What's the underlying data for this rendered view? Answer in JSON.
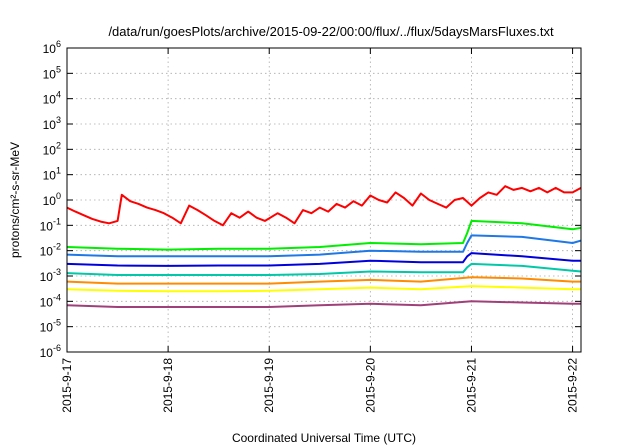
{
  "chart_data": {
    "type": "line",
    "title": "/data/run/goesPlots/archive/2015-09-22/00:00/flux/../flux/5daysMarsFluxes.txt",
    "xlabel": "Coordinated Universal Time (UTC)",
    "ylabel": "protons/cm²-s-sr-MeV",
    "y_scale": "log",
    "ylim": [
      1e-06,
      1000000.0
    ],
    "y_ticks": [
      {
        "value": 1e-06,
        "base": "10",
        "exp": "-6"
      },
      {
        "value": 1e-05,
        "base": "10",
        "exp": "-5"
      },
      {
        "value": 0.0001,
        "base": "10",
        "exp": "-4"
      },
      {
        "value": 0.001,
        "base": "10",
        "exp": "-3"
      },
      {
        "value": 0.01,
        "base": "10",
        "exp": "-2"
      },
      {
        "value": 0.1,
        "base": "10",
        "exp": "-1"
      },
      {
        "value": 1,
        "base": "10",
        "exp": "0"
      },
      {
        "value": 10,
        "base": "10",
        "exp": "1"
      },
      {
        "value": 100,
        "base": "10",
        "exp": "2"
      },
      {
        "value": 1000,
        "base": "10",
        "exp": "3"
      },
      {
        "value": 10000,
        "base": "10",
        "exp": "4"
      },
      {
        "value": 100000,
        "base": "10",
        "exp": "5"
      },
      {
        "value": 1000000,
        "base": "10",
        "exp": "6"
      }
    ],
    "xlim": [
      "2015-09-17",
      "2015-09-22 02:00"
    ],
    "x_ticks": [
      {
        "value": "2015-09-17",
        "label": "2015-9-17"
      },
      {
        "value": "2015-09-18",
        "label": "2015-9-18"
      },
      {
        "value": "2015-09-19",
        "label": "2015-9-19"
      },
      {
        "value": "2015-09-20",
        "label": "2015-9-20"
      },
      {
        "value": "2015-09-21",
        "label": "2015-9-21"
      },
      {
        "value": "2015-09-22",
        "label": "2015-9-22"
      }
    ],
    "grid": true,
    "legend": "none",
    "series": [
      {
        "color": "#ff0000",
        "x": [
          "2015-09-17 00:00",
          "2015-09-17 02:00",
          "2015-09-17 04:00",
          "2015-09-17 06:00",
          "2015-09-17 08:00",
          "2015-09-17 10:00",
          "2015-09-17 12:00",
          "2015-09-17 13:00",
          "2015-09-17 15:00",
          "2015-09-17 17:00",
          "2015-09-17 19:00",
          "2015-09-17 21:00",
          "2015-09-17 23:00",
          "2015-09-18 01:00",
          "2015-09-18 03:00",
          "2015-09-18 05:00",
          "2015-09-18 07:00",
          "2015-09-18 09:00",
          "2015-09-18 11:00",
          "2015-09-18 13:00",
          "2015-09-18 15:00",
          "2015-09-18 17:00",
          "2015-09-18 19:00",
          "2015-09-18 21:00",
          "2015-09-18 23:00",
          "2015-09-19 02:00",
          "2015-09-19 04:00",
          "2015-09-19 06:00",
          "2015-09-19 08:00",
          "2015-09-19 10:00",
          "2015-09-19 12:00",
          "2015-09-19 14:00",
          "2015-09-19 16:00",
          "2015-09-19 18:00",
          "2015-09-19 20:00",
          "2015-09-19 22:00",
          "2015-09-20 00:00",
          "2015-09-20 02:00",
          "2015-09-20 04:00",
          "2015-09-20 06:00",
          "2015-09-20 08:00",
          "2015-09-20 10:00",
          "2015-09-20 12:00",
          "2015-09-20 14:00",
          "2015-09-20 16:00",
          "2015-09-20 18:00",
          "2015-09-20 20:00",
          "2015-09-20 22:00",
          "2015-09-21 00:00",
          "2015-09-21 02:00",
          "2015-09-21 04:00",
          "2015-09-21 06:00",
          "2015-09-21 08:00",
          "2015-09-21 10:00",
          "2015-09-21 12:00",
          "2015-09-21 14:00",
          "2015-09-21 16:00",
          "2015-09-21 18:00",
          "2015-09-21 20:00",
          "2015-09-21 22:00",
          "2015-09-22 00:00",
          "2015-09-22 02:00"
        ],
        "y": [
          0.5,
          0.35,
          0.25,
          0.18,
          0.14,
          0.12,
          0.15,
          1.6,
          0.9,
          0.7,
          0.5,
          0.4,
          0.3,
          0.2,
          0.12,
          0.6,
          0.4,
          0.25,
          0.15,
          0.1,
          0.3,
          0.2,
          0.35,
          0.2,
          0.15,
          0.3,
          0.2,
          0.12,
          0.4,
          0.3,
          0.5,
          0.35,
          0.7,
          0.5,
          0.9,
          0.6,
          1.5,
          1.0,
          0.8,
          2.0,
          1.2,
          0.6,
          1.8,
          1.0,
          0.7,
          0.5,
          1.0,
          1.2,
          0.6,
          1.2,
          2.0,
          1.6,
          3.5,
          2.5,
          3.0,
          2.2,
          3.0,
          2.0,
          3.0,
          2.0,
          2.0,
          3.0
        ]
      },
      {
        "color": "#00ee00",
        "x": [
          "2015-09-17 00:00",
          "2015-09-17 12:00",
          "2015-09-18 00:00",
          "2015-09-18 12:00",
          "2015-09-19 00:00",
          "2015-09-19 12:00",
          "2015-09-20 00:00",
          "2015-09-20 12:00",
          "2015-09-20 22:00",
          "2015-09-20 23:00",
          "2015-09-21 00:00",
          "2015-09-21 12:00",
          "2015-09-22 00:00",
          "2015-09-22 02:00"
        ],
        "y": [
          0.014,
          0.012,
          0.011,
          0.012,
          0.012,
          0.014,
          0.02,
          0.018,
          0.02,
          0.05,
          0.15,
          0.12,
          0.07,
          0.08
        ]
      },
      {
        "color": "#1e78e6",
        "x": [
          "2015-09-17 00:00",
          "2015-09-17 12:00",
          "2015-09-18 00:00",
          "2015-09-18 12:00",
          "2015-09-19 00:00",
          "2015-09-19 12:00",
          "2015-09-20 00:00",
          "2015-09-20 12:00",
          "2015-09-20 22:00",
          "2015-09-20 23:00",
          "2015-09-21 00:00",
          "2015-09-21 12:00",
          "2015-09-22 00:00",
          "2015-09-22 02:00"
        ],
        "y": [
          0.007,
          0.006,
          0.006,
          0.006,
          0.006,
          0.007,
          0.01,
          0.009,
          0.009,
          0.02,
          0.04,
          0.035,
          0.02,
          0.025
        ]
      },
      {
        "color": "#0000dd",
        "x": [
          "2015-09-17 00:00",
          "2015-09-17 12:00",
          "2015-09-18 00:00",
          "2015-09-18 12:00",
          "2015-09-19 00:00",
          "2015-09-19 12:00",
          "2015-09-20 00:00",
          "2015-09-20 12:00",
          "2015-09-20 22:00",
          "2015-09-20 23:00",
          "2015-09-21 00:00",
          "2015-09-21 12:00",
          "2015-09-22 00:00",
          "2015-09-22 02:00"
        ],
        "y": [
          0.003,
          0.0026,
          0.0025,
          0.0026,
          0.0026,
          0.003,
          0.004,
          0.0035,
          0.0035,
          0.006,
          0.008,
          0.006,
          0.004,
          0.004
        ]
      },
      {
        "color": "#00c8a8",
        "x": [
          "2015-09-17 00:00",
          "2015-09-17 12:00",
          "2015-09-18 00:00",
          "2015-09-18 12:00",
          "2015-09-19 00:00",
          "2015-09-19 12:00",
          "2015-09-20 00:00",
          "2015-09-20 12:00",
          "2015-09-20 22:00",
          "2015-09-20 23:00",
          "2015-09-21 00:00",
          "2015-09-21 12:00",
          "2015-09-22 00:00",
          "2015-09-22 02:00"
        ],
        "y": [
          0.0013,
          0.0011,
          0.0011,
          0.0011,
          0.0011,
          0.0012,
          0.0015,
          0.0014,
          0.0014,
          0.0022,
          0.003,
          0.0025,
          0.0016,
          0.0015
        ]
      },
      {
        "color": "#ff8c00",
        "x": [
          "2015-09-17 00:00",
          "2015-09-17 12:00",
          "2015-09-18 00:00",
          "2015-09-18 12:00",
          "2015-09-19 00:00",
          "2015-09-19 12:00",
          "2015-09-20 00:00",
          "2015-09-20 12:00",
          "2015-09-21 00:00",
          "2015-09-21 12:00",
          "2015-09-22 00:00",
          "2015-09-22 02:00"
        ],
        "y": [
          0.0006,
          0.0005,
          0.0005,
          0.0005,
          0.0005,
          0.0006,
          0.0007,
          0.0006,
          0.0009,
          0.0008,
          0.0006,
          0.0006
        ]
      },
      {
        "color": "#ffff00",
        "x": [
          "2015-09-17 00:00",
          "2015-09-17 12:00",
          "2015-09-18 00:00",
          "2015-09-18 12:00",
          "2015-09-19 00:00",
          "2015-09-19 12:00",
          "2015-09-20 00:00",
          "2015-09-20 12:00",
          "2015-09-21 00:00",
          "2015-09-21 12:00",
          "2015-09-22 00:00",
          "2015-09-22 02:00"
        ],
        "y": [
          0.0003,
          0.00026,
          0.00025,
          0.00025,
          0.00026,
          0.0003,
          0.00035,
          0.0003,
          0.0004,
          0.00035,
          0.0003,
          0.0003
        ]
      },
      {
        "color": "#a0407a",
        "x": [
          "2015-09-17 00:00",
          "2015-09-17 12:00",
          "2015-09-18 00:00",
          "2015-09-18 12:00",
          "2015-09-19 00:00",
          "2015-09-19 12:00",
          "2015-09-20 00:00",
          "2015-09-20 12:00",
          "2015-09-21 00:00",
          "2015-09-21 12:00",
          "2015-09-22 00:00",
          "2015-09-22 02:00"
        ],
        "y": [
          7e-05,
          6e-05,
          6e-05,
          6e-05,
          6e-05,
          7e-05,
          8e-05,
          7e-05,
          0.0001,
          9e-05,
          8e-05,
          8e-05
        ]
      }
    ]
  }
}
